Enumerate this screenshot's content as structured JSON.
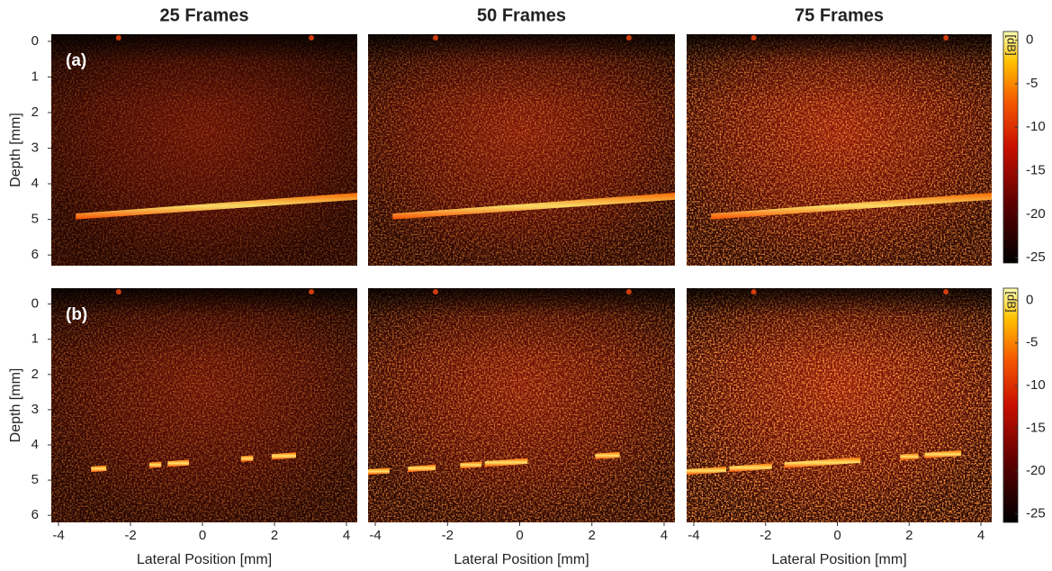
{
  "chart_data": [
    {
      "type": "heatmap",
      "title": "25 Frames",
      "panel_label": "(a)",
      "ylabel": "Depth [mm]",
      "xlim": [
        -4.2,
        4.3
      ],
      "ylim": [
        6.3,
        -0.2
      ],
      "yticks": [
        0,
        1,
        2,
        3,
        4,
        5,
        6
      ]
    },
    {
      "type": "heatmap",
      "title": "50 Frames",
      "xlim": [
        -4.2,
        4.3
      ],
      "ylim": [
        6.3,
        -0.2
      ]
    },
    {
      "type": "heatmap",
      "title": "75 Frames",
      "xlim": [
        -4.2,
        4.3
      ],
      "ylim": [
        6.3,
        -0.2
      ],
      "colorbar": {
        "label": "[dB]",
        "lim": [
          -25.6,
          1
        ],
        "ticks": [
          0,
          -5,
          -10,
          -15,
          -20,
          -25
        ]
      }
    },
    {
      "type": "heatmap",
      "panel_label": "(b)",
      "ylabel": "Depth [mm]",
      "xlabel": "Lateral Position [mm]",
      "xlim": [
        -4.2,
        4.3
      ],
      "ylim": [
        6.2,
        -0.45
      ],
      "yticks": [
        0,
        1,
        2,
        3,
        4,
        5,
        6
      ],
      "xticks": [
        -4,
        -2,
        0,
        2,
        4
      ]
    },
    {
      "type": "heatmap",
      "xlabel": "Lateral Position [mm]",
      "xlim": [
        -4.2,
        4.3
      ],
      "ylim": [
        6.2,
        -0.45
      ],
      "xticks": [
        -4,
        -2,
        0,
        2,
        4
      ]
    },
    {
      "type": "heatmap",
      "xlabel": "Lateral Position [mm]",
      "xlim": [
        -4.2,
        4.3
      ],
      "ylim": [
        6.2,
        -0.45
      ],
      "xticks": [
        -4,
        -2,
        0,
        2,
        4
      ],
      "colorbar": {
        "label": "[dB]",
        "lim": [
          -26,
          1.4
        ],
        "ticks": [
          0,
          -5,
          -10,
          -15,
          -20,
          -25
        ]
      }
    }
  ]
}
